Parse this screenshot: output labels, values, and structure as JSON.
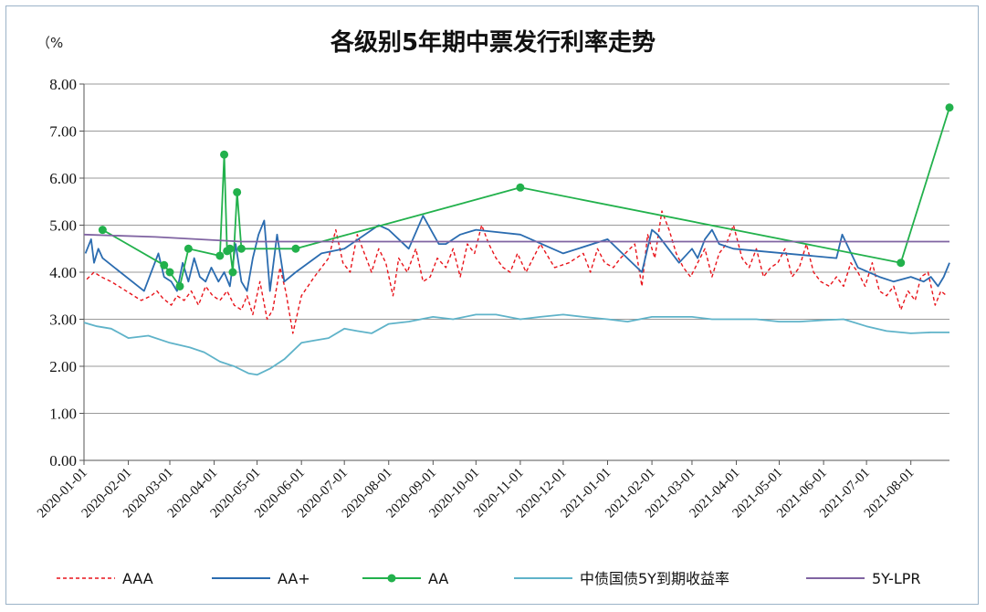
{
  "chart_data": {
    "type": "line",
    "title": "各级别5年期中票发行利率走势",
    "ylabel": "（%",
    "ylim": [
      0,
      8
    ],
    "yticks": [
      "0.00",
      "1.00",
      "2.00",
      "3.00",
      "4.00",
      "5.00",
      "6.00",
      "7.00",
      "8.00"
    ],
    "xlim": [
      "2020-01-01",
      "2021-08-28"
    ],
    "xticks": [
      "2020-01-01",
      "2020-02-01",
      "2020-03-01",
      "2020-04-01",
      "2020-05-01",
      "2020-06-01",
      "2020-07-01",
      "2020-08-01",
      "2020-09-01",
      "2020-10-01",
      "2020-11-01",
      "2020-12-01",
      "2021-01-01",
      "2021-02-01",
      "2021-03-01",
      "2021-04-01",
      "2021-05-01",
      "2021-06-01",
      "2021-07-01",
      "2021-08-01"
    ],
    "grid": "horizontal",
    "legend_position": "bottom",
    "series": [
      {
        "name": "AAA",
        "color": "#e8141b",
        "style": "dashed",
        "markers": false,
        "x": [
          "2020-01-03",
          "2020-01-08",
          "2020-01-13",
          "2020-01-20",
          "2020-02-10",
          "2020-02-17",
          "2020-02-21",
          "2020-02-25",
          "2020-03-02",
          "2020-03-06",
          "2020-03-11",
          "2020-03-16",
          "2020-03-21",
          "2020-03-26",
          "2020-03-31",
          "2020-04-05",
          "2020-04-10",
          "2020-04-15",
          "2020-04-20",
          "2020-04-24",
          "2020-04-28",
          "2020-05-03",
          "2020-05-08",
          "2020-05-12",
          "2020-05-17",
          "2020-05-21",
          "2020-05-26",
          "2020-06-01",
          "2020-06-10",
          "2020-06-20",
          "2020-06-25",
          "2020-06-30",
          "2020-07-05",
          "2020-07-10",
          "2020-07-20",
          "2020-07-25",
          "2020-07-30",
          "2020-08-04",
          "2020-08-08",
          "2020-08-14",
          "2020-08-20",
          "2020-08-25",
          "2020-08-30",
          "2020-09-04",
          "2020-09-10",
          "2020-09-15",
          "2020-09-20",
          "2020-09-25",
          "2020-09-30",
          "2020-10-05",
          "2020-10-10",
          "2020-10-15",
          "2020-10-20",
          "2020-10-25",
          "2020-10-30",
          "2020-11-05",
          "2020-11-15",
          "2020-11-25",
          "2020-12-05",
          "2020-12-15",
          "2020-12-20",
          "2020-12-25",
          "2020-12-30",
          "2021-01-05",
          "2021-01-10",
          "2021-01-20",
          "2021-01-25",
          "2021-01-29",
          "2021-02-03",
          "2021-02-08",
          "2021-02-13",
          "2021-02-18",
          "2021-02-23",
          "2021-02-28",
          "2021-03-05",
          "2021-03-10",
          "2021-03-15",
          "2021-03-20",
          "2021-03-25",
          "2021-03-30",
          "2021-04-05",
          "2021-04-10",
          "2021-04-15",
          "2021-04-20",
          "2021-04-25",
          "2021-04-30",
          "2021-05-05",
          "2021-05-10",
          "2021-05-15",
          "2021-05-20",
          "2021-05-25",
          "2021-05-30",
          "2021-06-05",
          "2021-06-10",
          "2021-06-15",
          "2021-06-20",
          "2021-06-25",
          "2021-06-30",
          "2021-07-05",
          "2021-07-10",
          "2021-07-15",
          "2021-07-20",
          "2021-07-25",
          "2021-07-30",
          "2021-08-04",
          "2021-08-08",
          "2021-08-13",
          "2021-08-18",
          "2021-08-22",
          "2021-08-26"
        ],
        "y": [
          3.85,
          4.0,
          3.9,
          3.8,
          3.4,
          3.5,
          3.6,
          3.45,
          3.3,
          3.5,
          3.4,
          3.6,
          3.3,
          3.7,
          3.5,
          3.4,
          3.6,
          3.3,
          3.2,
          3.5,
          3.1,
          3.8,
          3.0,
          3.2,
          4.1,
          3.6,
          2.7,
          3.5,
          3.9,
          4.3,
          4.9,
          4.2,
          4.0,
          4.8,
          4.0,
          4.5,
          4.2,
          3.5,
          4.3,
          4.0,
          4.5,
          3.8,
          3.9,
          4.3,
          4.1,
          4.5,
          3.9,
          4.6,
          4.4,
          5.0,
          4.6,
          4.3,
          4.1,
          4.0,
          4.4,
          4.0,
          4.6,
          4.1,
          4.2,
          4.4,
          4.0,
          4.5,
          4.2,
          4.1,
          4.3,
          4.6,
          3.7,
          4.8,
          4.3,
          5.3,
          4.9,
          4.4,
          4.1,
          3.9,
          4.2,
          4.5,
          3.9,
          4.4,
          4.6,
          5.0,
          4.3,
          4.1,
          4.5,
          3.9,
          4.1,
          4.2,
          4.5,
          3.9,
          4.1,
          4.6,
          4.0,
          3.8,
          3.7,
          3.9,
          3.7,
          4.2,
          4.0,
          3.7,
          4.2,
          3.6,
          3.5,
          3.7,
          3.2,
          3.6,
          3.4,
          3.9,
          4.0,
          3.3,
          3.6,
          3.5
        ]
      },
      {
        "name": "AA+",
        "color": "#2b6cb0",
        "style": "solid",
        "markers": false,
        "x": [
          "2020-01-02",
          "2020-01-06",
          "2020-01-08",
          "2020-01-11",
          "2020-01-14",
          "2020-02-12",
          "2020-02-22",
          "2020-02-26",
          "2020-03-02",
          "2020-03-06",
          "2020-03-10",
          "2020-03-14",
          "2020-03-18",
          "2020-03-22",
          "2020-03-26",
          "2020-03-30",
          "2020-04-04",
          "2020-04-08",
          "2020-04-12",
          "2020-04-16",
          "2020-04-20",
          "2020-04-24",
          "2020-04-28",
          "2020-05-02",
          "2020-05-06",
          "2020-05-10",
          "2020-05-15",
          "2020-05-20",
          "2020-05-28",
          "2020-06-15",
          "2020-07-01",
          "2020-07-25",
          "2020-08-01",
          "2020-08-15",
          "2020-08-25",
          "2020-09-05",
          "2020-09-10",
          "2020-09-20",
          "2020-10-01",
          "2020-11-01",
          "2020-12-01",
          "2021-01-01",
          "2021-01-25",
          "2021-02-01",
          "2021-02-05",
          "2021-02-20",
          "2021-03-01",
          "2021-03-05",
          "2021-03-10",
          "2021-03-15",
          "2021-03-20",
          "2021-03-30",
          "2021-06-10",
          "2021-06-14",
          "2021-06-25",
          "2021-07-10",
          "2021-07-20",
          "2021-08-01",
          "2021-08-10",
          "2021-08-15",
          "2021-08-20",
          "2021-08-24",
          "2021-08-28"
        ],
        "y": [
          4.4,
          4.7,
          4.2,
          4.5,
          4.3,
          3.6,
          4.4,
          3.9,
          3.8,
          3.6,
          4.2,
          3.8,
          4.3,
          3.9,
          3.8,
          4.1,
          3.8,
          4.0,
          3.7,
          4.6,
          3.8,
          3.6,
          4.3,
          4.8,
          5.1,
          3.6,
          4.8,
          3.8,
          4.0,
          4.4,
          4.5,
          5.0,
          4.9,
          4.5,
          5.2,
          4.6,
          4.6,
          4.8,
          4.9,
          4.8,
          4.4,
          4.7,
          4.0,
          4.9,
          4.8,
          4.2,
          4.5,
          4.3,
          4.7,
          4.9,
          4.6,
          4.5,
          4.3,
          4.8,
          4.1,
          3.9,
          3.8,
          3.9,
          3.8,
          3.9,
          3.7,
          3.9,
          4.2
        ]
      },
      {
        "name": "AA",
        "color": "#22b14c",
        "style": "solid",
        "markers": true,
        "x": [
          "2020-01-14",
          "2020-02-26",
          "2020-03-01",
          "2020-03-08",
          "2020-03-14",
          "2020-04-05",
          "2020-04-08",
          "2020-04-10",
          "2020-04-12",
          "2020-04-14",
          "2020-04-17",
          "2020-04-20",
          "2020-05-28",
          "2020-11-01",
          "2021-07-25",
          "2021-08-28"
        ],
        "y": [
          4.9,
          4.15,
          4.0,
          3.7,
          4.5,
          4.35,
          6.5,
          4.45,
          4.5,
          4.0,
          5.7,
          4.5,
          4.5,
          5.8,
          4.2,
          7.5
        ]
      },
      {
        "name": "中债国债5Y到期收益率",
        "color": "#5fb3c9",
        "style": "solid",
        "markers": false,
        "x": [
          "2020-01-01",
          "2020-01-10",
          "2020-01-20",
          "2020-02-01",
          "2020-02-15",
          "2020-03-01",
          "2020-03-15",
          "2020-03-25",
          "2020-04-05",
          "2020-04-15",
          "2020-04-25",
          "2020-05-01",
          "2020-05-10",
          "2020-05-20",
          "2020-06-01",
          "2020-06-10",
          "2020-06-20",
          "2020-07-01",
          "2020-07-10",
          "2020-07-20",
          "2020-08-01",
          "2020-08-15",
          "2020-09-01",
          "2020-09-15",
          "2020-10-01",
          "2020-10-15",
          "2020-11-01",
          "2020-11-15",
          "2020-12-01",
          "2020-12-15",
          "2021-01-01",
          "2021-01-15",
          "2021-02-01",
          "2021-02-15",
          "2021-03-01",
          "2021-03-15",
          "2021-04-01",
          "2021-04-15",
          "2021-05-01",
          "2021-05-15",
          "2021-06-01",
          "2021-06-15",
          "2021-07-01",
          "2021-07-15",
          "2021-08-01",
          "2021-08-15",
          "2021-08-28"
        ],
        "y": [
          2.93,
          2.85,
          2.8,
          2.6,
          2.65,
          2.5,
          2.4,
          2.3,
          2.1,
          2.0,
          1.85,
          1.82,
          1.95,
          2.15,
          2.5,
          2.55,
          2.6,
          2.8,
          2.75,
          2.7,
          2.9,
          2.95,
          3.05,
          3.0,
          3.1,
          3.1,
          3.0,
          3.05,
          3.1,
          3.05,
          3.0,
          2.95,
          3.05,
          3.05,
          3.05,
          3.0,
          3.0,
          3.0,
          2.95,
          2.95,
          2.98,
          3.0,
          2.85,
          2.75,
          2.7,
          2.72,
          2.72
        ]
      },
      {
        "name": "5Y-LPR",
        "color": "#8064a2",
        "style": "solid",
        "markers": false,
        "x": [
          "2020-01-01",
          "2020-02-20",
          "2020-04-20",
          "2021-08-28"
        ],
        "y": [
          4.8,
          4.75,
          4.65,
          4.65
        ]
      }
    ]
  }
}
